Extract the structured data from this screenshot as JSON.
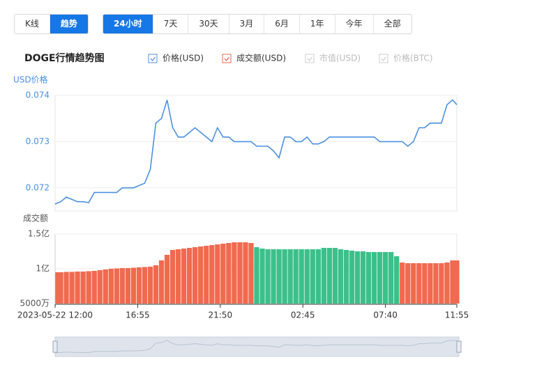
{
  "toolbar": {
    "view_tabs": [
      "K线",
      "趋势"
    ],
    "view_active": 1,
    "range_tabs": [
      "24小时",
      "7天",
      "30天",
      "3月",
      "6月",
      "1年",
      "今年",
      "全部"
    ],
    "range_active": 0
  },
  "chart_data": {
    "type": "line",
    "title": "DOGE行情趋势图",
    "legend_inactive": [
      "市值(USD)",
      "价格(BTC)"
    ],
    "x": [
      0,
      20,
      40,
      60,
      80,
      100,
      120,
      140,
      160,
      180,
      200,
      220,
      240,
      260,
      280,
      300,
      320,
      340,
      360,
      380,
      400,
      420,
      440,
      460,
      480,
      500,
      520,
      540,
      560,
      580,
      600,
      620,
      640,
      660,
      680,
      700,
      720,
      740,
      760,
      780,
      800,
      820,
      840,
      860,
      880,
      900,
      920,
      940,
      960,
      980,
      1000,
      1020,
      1040,
      1060,
      1080,
      1100,
      1120,
      1140,
      1160,
      1180,
      1200,
      1220,
      1240,
      1260,
      1280,
      1300,
      1320,
      1340,
      1360,
      1380,
      1400,
      1420,
      1435
    ],
    "xlim": [
      0,
      1435
    ],
    "xticks": [
      {
        "value": 0,
        "label": "2023-05-22 12:00"
      },
      {
        "value": 295,
        "label": "16:55"
      },
      {
        "value": 590,
        "label": "21:50"
      },
      {
        "value": 885,
        "label": "02:45"
      },
      {
        "value": 1180,
        "label": "07:40"
      },
      {
        "value": 1435,
        "label": "11:55"
      }
    ],
    "ylabel": "USD价格",
    "ylim": [
      0.0715,
      0.074
    ],
    "yticks": [
      0.072,
      0.073,
      0.074
    ],
    "y2label": "成交额",
    "y2lim": [
      50000000,
      150000000
    ],
    "y2ticks": [
      {
        "value": 50000000,
        "label": "5000万"
      },
      {
        "value": 100000000,
        "label": "1亿"
      },
      {
        "value": 150000000,
        "label": "1.5亿"
      }
    ],
    "grid": true,
    "series": [
      {
        "name": "价格(USD)",
        "color": "#4a90e2",
        "type": "line",
        "values": [
          0.07165,
          0.0717,
          0.0718,
          0.07175,
          0.0717,
          0.0717,
          0.07168,
          0.0719,
          0.0719,
          0.0719,
          0.0719,
          0.0719,
          0.072,
          0.072,
          0.072,
          0.07205,
          0.0721,
          0.0724,
          0.0734,
          0.0735,
          0.0739,
          0.0733,
          0.0731,
          0.0731,
          0.0732,
          0.0733,
          0.0732,
          0.0731,
          0.073,
          0.0733,
          0.0731,
          0.0731,
          0.073,
          0.073,
          0.073,
          0.073,
          0.0729,
          0.0729,
          0.0729,
          0.0728,
          0.07265,
          0.0731,
          0.0731,
          0.073,
          0.073,
          0.0731,
          0.07295,
          0.07295,
          0.073,
          0.0731,
          0.0731,
          0.0731,
          0.0731,
          0.0731,
          0.0731,
          0.0731,
          0.0731,
          0.0731,
          0.073,
          0.073,
          0.073,
          0.073,
          0.073,
          0.0729,
          0.073,
          0.0733,
          0.0733,
          0.0734,
          0.0734,
          0.0734,
          0.0738,
          0.0739,
          0.0738
        ]
      },
      {
        "name": "成交额(USD)",
        "color": "#f06a4f",
        "type": "bar",
        "axis": "y2",
        "values": [
          95000000,
          95000000,
          95500000,
          95500000,
          96000000,
          96000000,
          96500000,
          97000000,
          98000000,
          99000000,
          100000000,
          100500000,
          101000000,
          101000000,
          101500000,
          102000000,
          102500000,
          103000000,
          105000000,
          112000000,
          120000000,
          127000000,
          128000000,
          129000000,
          130000000,
          131000000,
          132000000,
          133000000,
          134000000,
          135000000,
          136000000,
          137000000,
          138000000,
          138000000,
          138000000,
          137000000,
          131000000,
          129000000,
          128000000,
          128000000,
          128000000,
          128000000,
          128000000,
          128000000,
          128000000,
          128000000,
          128000000,
          128000000,
          130000000,
          130000000,
          130000000,
          128000000,
          127000000,
          126000000,
          125000000,
          125000000,
          124000000,
          124000000,
          124000000,
          124000000,
          124000000,
          118000000,
          109000000,
          108000000,
          108000000,
          108000000,
          108000000,
          108000000,
          108000000,
          108000000,
          109000000,
          112000000,
          112000000
        ],
        "colors": [
          "#f06a4f",
          "#f06a4f",
          "#f06a4f",
          "#f06a4f",
          "#f06a4f",
          "#f06a4f",
          "#f06a4f",
          "#f06a4f",
          "#f06a4f",
          "#f06a4f",
          "#f06a4f",
          "#f06a4f",
          "#f06a4f",
          "#f06a4f",
          "#f06a4f",
          "#f06a4f",
          "#f06a4f",
          "#f06a4f",
          "#f06a4f",
          "#f06a4f",
          "#f06a4f",
          "#f06a4f",
          "#f06a4f",
          "#f06a4f",
          "#f06a4f",
          "#f06a4f",
          "#f06a4f",
          "#f06a4f",
          "#f06a4f",
          "#f06a4f",
          "#f06a4f",
          "#f06a4f",
          "#f06a4f",
          "#f06a4f",
          "#f06a4f",
          "#f06a4f",
          "#3cc08a",
          "#3cc08a",
          "#3cc08a",
          "#3cc08a",
          "#3cc08a",
          "#3cc08a",
          "#3cc08a",
          "#3cc08a",
          "#3cc08a",
          "#3cc08a",
          "#3cc08a",
          "#3cc08a",
          "#3cc08a",
          "#3cc08a",
          "#3cc08a",
          "#3cc08a",
          "#3cc08a",
          "#3cc08a",
          "#3cc08a",
          "#3cc08a",
          "#3cc08a",
          "#3cc08a",
          "#3cc08a",
          "#3cc08a",
          "#3cc08a",
          "#3cc08a",
          "#f06a4f",
          "#f06a4f",
          "#f06a4f",
          "#f06a4f",
          "#f06a4f",
          "#f06a4f",
          "#f06a4f",
          "#f06a4f",
          "#f06a4f",
          "#f06a4f",
          "#f06a4f"
        ]
      }
    ]
  }
}
